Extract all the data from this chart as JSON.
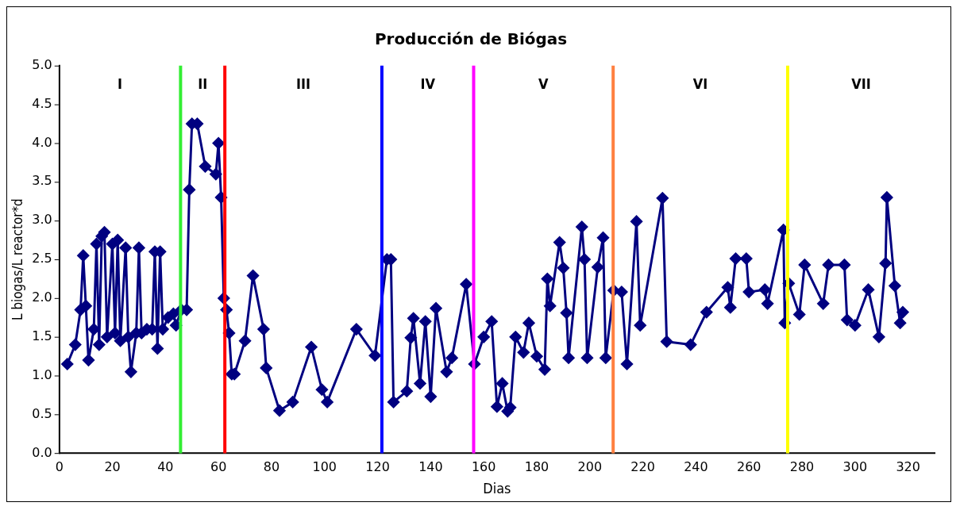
{
  "chart_data": {
    "type": "line",
    "title": "Producción de Biógas",
    "xlabel": "Dias",
    "ylabel": "L biogas/L reactor*d",
    "xlim": [
      0,
      330
    ],
    "xticks": [
      0,
      20,
      40,
      60,
      80,
      100,
      120,
      140,
      160,
      180,
      200,
      220,
      240,
      260,
      280,
      300,
      320
    ],
    "ylim": [
      0,
      5
    ],
    "yticks": [
      {
        "value": 0,
        "label": "0.0"
      },
      {
        "value": 0.5,
        "label": "0.5"
      },
      {
        "value": 1,
        "label": "1.0"
      },
      {
        "value": 1.5,
        "label": "1.5"
      },
      {
        "value": 2,
        "label": "2.0"
      },
      {
        "value": 2.5,
        "label": "2.5"
      },
      {
        "value": 3,
        "label": "3.0"
      },
      {
        "value": 3.5,
        "label": "3.5"
      },
      {
        "value": 4,
        "label": "4.0"
      },
      {
        "value": 4.5,
        "label": "4.5"
      },
      {
        "value": 5,
        "label": "5.0"
      }
    ],
    "grid": false,
    "legend": false,
    "marker": "diamond",
    "line_style": "solid",
    "series": [
      {
        "color": "#000080",
        "x": [
          3,
          6,
          8,
          9,
          10,
          11,
          13,
          14,
          15,
          16,
          17,
          18,
          20,
          21,
          22,
          23,
          25,
          26,
          27,
          29,
          30,
          31,
          33,
          35,
          36,
          37,
          38,
          39,
          41,
          43,
          44,
          46,
          48,
          49,
          50,
          52,
          55,
          59,
          60,
          61,
          62,
          63,
          64,
          65,
          66,
          70,
          73,
          77,
          78,
          83,
          88,
          95,
          99,
          101,
          112,
          119,
          123.5,
          125,
          126,
          131,
          132.5,
          133.5,
          136,
          138,
          140,
          142,
          146,
          148,
          153.4,
          156.5,
          160,
          163,
          165,
          167,
          169,
          170,
          172,
          175,
          177,
          180,
          183,
          184,
          185,
          188.6,
          190,
          191.2,
          192,
          197,
          198,
          199,
          203,
          205,
          206,
          209,
          212,
          214,
          217.6,
          219,
          227.4,
          229,
          238,
          244,
          252,
          253,
          255,
          259,
          260,
          266,
          267,
          273,
          273.5,
          275,
          279,
          281,
          288,
          290,
          296,
          297,
          300,
          305,
          309,
          311.5,
          312,
          315,
          317,
          318
        ],
        "values": [
          1.15,
          1.4,
          1.85,
          2.55,
          1.9,
          1.2,
          1.6,
          2.7,
          1.4,
          2.8,
          2.85,
          1.5,
          2.7,
          1.55,
          2.75,
          1.45,
          2.65,
          1.5,
          1.05,
          1.55,
          2.65,
          1.55,
          1.6,
          1.6,
          2.6,
          1.35,
          2.6,
          1.6,
          1.75,
          1.8,
          1.65,
          1.85,
          1.85,
          3.4,
          4.25,
          4.25,
          3.7,
          3.6,
          4.0,
          3.3,
          2.0,
          1.85,
          1.55,
          1.02,
          1.02,
          1.45,
          2.29,
          1.6,
          1.1,
          0.55,
          0.66,
          1.37,
          0.82,
          0.66,
          1.6,
          1.26,
          2.5,
          2.5,
          0.66,
          0.8,
          1.49,
          1.74,
          0.9,
          1.7,
          0.73,
          1.87,
          1.05,
          1.23,
          2.18,
          1.15,
          1.5,
          1.7,
          0.6,
          0.9,
          0.54,
          0.59,
          1.5,
          1.3,
          1.68,
          1.25,
          1.08,
          2.25,
          1.9,
          2.72,
          2.39,
          1.81,
          1.23,
          2.92,
          2.5,
          1.23,
          2.4,
          2.78,
          1.23,
          2.1,
          2.08,
          1.15,
          2.99,
          1.65,
          3.29,
          1.44,
          1.4,
          1.82,
          2.14,
          1.88,
          2.51,
          2.51,
          2.08,
          2.11,
          1.93,
          2.88,
          1.68,
          2.19,
          1.79,
          2.43,
          1.93,
          2.43,
          2.43,
          1.72,
          1.65,
          2.11,
          1.5,
          2.45,
          3.3,
          2.16,
          1.68,
          1.82
        ]
      }
    ],
    "ref_lines": [
      {
        "axis": "x",
        "value": 45.7,
        "color": "#33ee33"
      },
      {
        "axis": "x",
        "value": 62.4,
        "color": "#ff0000"
      },
      {
        "axis": "x",
        "value": 121.6,
        "color": "#0000ff"
      },
      {
        "axis": "x",
        "value": 156.2,
        "color": "#ff00ff"
      },
      {
        "axis": "x",
        "value": 208.8,
        "color": "#ff8040"
      },
      {
        "axis": "x",
        "value": 274.6,
        "color": "#ffff00"
      }
    ],
    "annotations": [
      "I",
      "II",
      "III",
      "IV",
      "V",
      "VI",
      "VII"
    ]
  }
}
